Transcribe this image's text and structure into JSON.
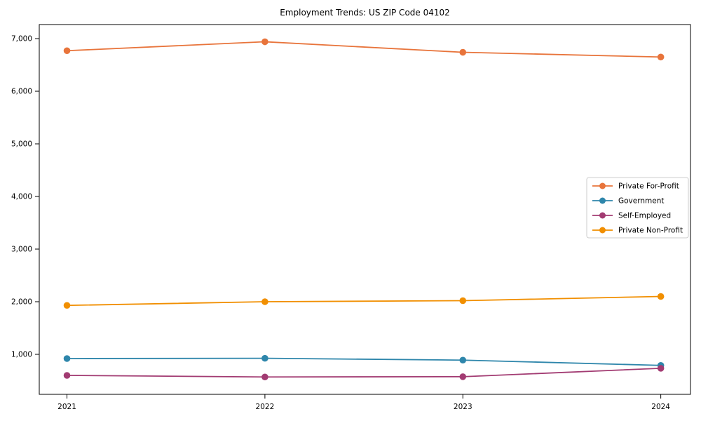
{
  "page": {
    "title": "Employment Trends: US ZIP Code 04102"
  },
  "chart_data": {
    "type": "line",
    "title": "Employment Trends: US ZIP Code 04102",
    "categories": [
      "2021",
      "2022",
      "2023",
      "2024"
    ],
    "x": [
      2021,
      2022,
      2023,
      2024
    ],
    "series": [
      {
        "name": "Private For-Profit",
        "color": "#E8743B",
        "values": [
          6770,
          6940,
          6740,
          6650
        ]
      },
      {
        "name": "Government",
        "color": "#2E86AB",
        "values": [
          920,
          925,
          890,
          790
        ]
      },
      {
        "name": "Self-Employed",
        "color": "#A23B72",
        "values": [
          600,
          570,
          575,
          735
        ]
      },
      {
        "name": "Private Non-Profit",
        "color": "#F18F01",
        "values": [
          1930,
          2000,
          2020,
          2100
        ]
      }
    ],
    "yticks": [
      1000,
      2000,
      3000,
      4000,
      5000,
      6000,
      7000
    ],
    "ytick_labels": [
      "1,000",
      "2,000",
      "3,000",
      "4,000",
      "5,000",
      "6,000",
      "7,000"
    ],
    "xlabel": "",
    "ylabel": "",
    "xlim": [
      2020.86,
      2024.15
    ],
    "ylim": [
      240,
      7267
    ],
    "grid": false,
    "legend_position": "center-right",
    "marker": "circle",
    "frame_color": "#000000",
    "legend_border_color": "#cccccc",
    "background_color": "#ffffff"
  }
}
